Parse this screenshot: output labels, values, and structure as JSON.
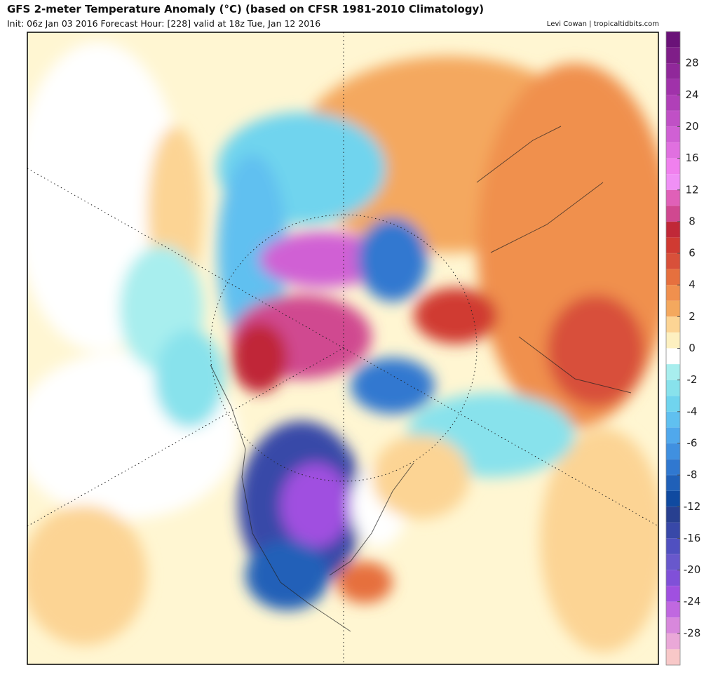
{
  "header": {
    "title": "GFS 2-meter Temperature Anomaly (°C) (based on CFSR 1981-2010 Climatology)",
    "subtitle": "Init: 06z Jan 03 2016   Forecast Hour: [228]   valid at 18z Tue, Jan 12 2016",
    "credit": "Levi Cowan | tropicaltidbits.com"
  },
  "colorbar": {
    "ticks": [
      28,
      24,
      20,
      16,
      12,
      8,
      6,
      4,
      2,
      0,
      -2,
      -4,
      -6,
      -8,
      -12,
      -16,
      -20,
      -24,
      -28
    ],
    "colors": [
      "#6a1278",
      "#7f1e88",
      "#90289a",
      "#a032aa",
      "#b040b8",
      "#c050c6",
      "#d060d4",
      "#e070e0",
      "#f080ee",
      "#f090f6",
      "#e060b8",
      "#d04890",
      "#c02838",
      "#d03a32",
      "#d8503a",
      "#e6703e",
      "#f0904e",
      "#f4a85e",
      "#fcd494",
      "#fdf0c0",
      "#ffffff",
      "#a8eeee",
      "#88e2ec",
      "#70d4ee",
      "#60c0f0",
      "#50a8ec",
      "#4090e0",
      "#3078d0",
      "#2060b8",
      "#104aa0",
      "#284090",
      "#3848a8",
      "#5050c0",
      "#6858cc",
      "#8050d8",
      "#a050e0",
      "#c068e0",
      "#d888dc",
      "#eaa8d8",
      "#f8c8c8"
    ]
  }
}
